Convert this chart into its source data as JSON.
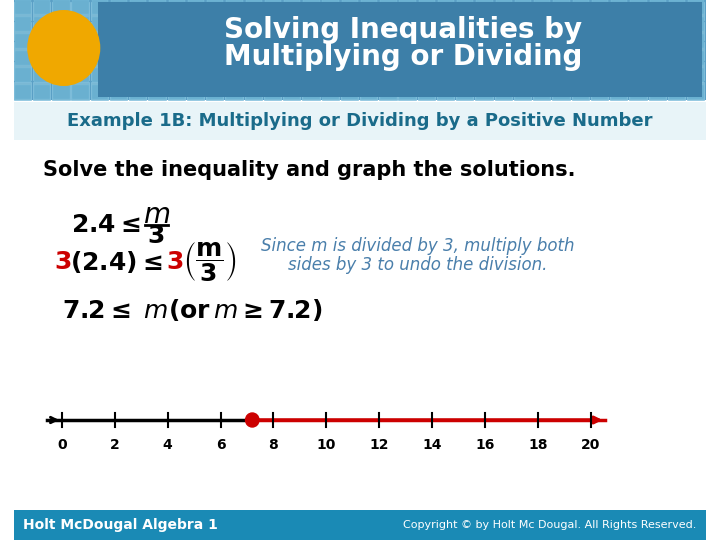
{
  "title_line1": "Solving Inequalities by",
  "title_line2": "Multiplying or Dividing",
  "title_bg_color": "#4a7fab",
  "title_text_color": "#ffffff",
  "circle_color": "#f0a800",
  "example_text": "Example 1B: Multiplying or Dividing by a Positive Number",
  "example_text_color": "#1a6b8a",
  "solve_text": "Solve the inequality and graph the solutions.",
  "solve_text_color": "#000000",
  "eq1_black": "2.4≤",
  "eq1_italic": "m",
  "eq1_denom": "3",
  "eq2_red": "3",
  "eq2_black": "(2.4) ≤ ",
  "eq2_red2": "3",
  "eq2_paren": "(",
  "eq2_frac_num": "m",
  "eq2_frac_den": "3",
  "eq2_rparen": ")",
  "since_text_line1": "Since m is divided by 3, multiply both",
  "since_text_line2": "sides by 3 to undo the division.",
  "since_text_color": "#4a7fab",
  "result_text": "7.2 ≤ m(or m ≥ 7.2)",
  "result_text_color": "#000000",
  "number_line_min": 0,
  "number_line_max": 20,
  "number_line_ticks": [
    0,
    2,
    4,
    6,
    8,
    10,
    12,
    14,
    16,
    18,
    20
  ],
  "solution_point": 7.2,
  "number_line_color_left": "#000000",
  "number_line_color_right": "#cc0000",
  "dot_color": "#cc0000",
  "footer_bg_color": "#1a8ab5",
  "footer_text_left": "Holt McDougal Algebra 1",
  "footer_text_right": "Copyright © by Holt Mc Dougal. All Rights Reserved.",
  "footer_text_color": "#ffffff",
  "main_bg_color": "#ffffff",
  "header_tile_color": "#6fa8c8"
}
